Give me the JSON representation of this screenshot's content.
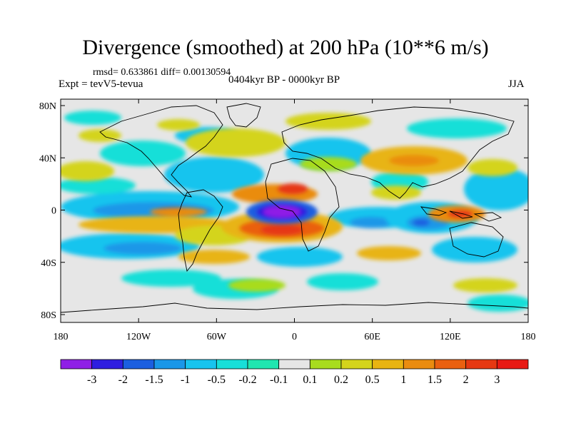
{
  "title": "Divergence (smoothed) at 200 hPa (10**6 m/s)",
  "stats": "rmsd= 0.633861 diff= 0.00130594",
  "experiment": "Expt = tevV5-tevua",
  "period": "0404kyr BP - 0000kyr BP",
  "season": "JJA",
  "lat_ticks": [
    "80N",
    "40N",
    "0",
    "40S",
    "80S"
  ],
  "lon_ticks": [
    "180",
    "120W",
    "60W",
    "0",
    "60E",
    "120E",
    "180"
  ],
  "colorbar": {
    "labels": [
      "-3",
      "-2",
      "-1.5",
      "-1",
      "-0.5",
      "-0.2",
      "-0.1",
      "0.1",
      "0.2",
      "0.5",
      "1",
      "1.5",
      "2",
      "3"
    ],
    "colors": [
      "#8f1fe6",
      "#2f1ee0",
      "#1c5fe0",
      "#1a97e8",
      "#18c4ee",
      "#18dfd8",
      "#20e6b0",
      "#e6e6e6",
      "#a8dc1e",
      "#d4d41c",
      "#e8b412",
      "#ea8c10",
      "#ea6010",
      "#e63812",
      "#e81a14"
    ]
  },
  "colors": {
    "background": "#e6e6e6",
    "coast": "#000000"
  }
}
